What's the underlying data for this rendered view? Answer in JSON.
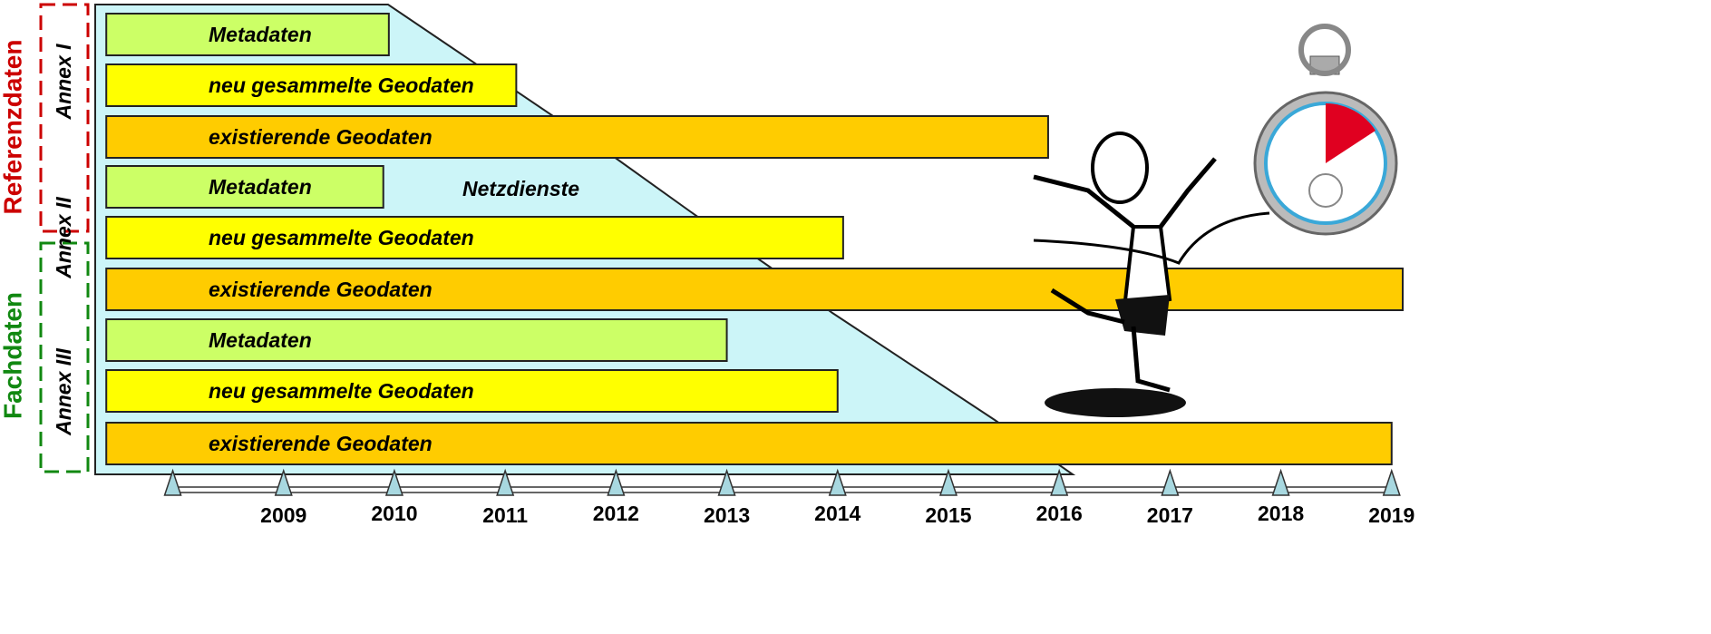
{
  "chart_data": {
    "type": "gantt",
    "side_labels": [
      {
        "label": "Referenzdaten",
        "color": "#cc0000"
      },
      {
        "label": "Fachdaten",
        "color": "#118811"
      }
    ],
    "groups": [
      "Annex I",
      "Annex II",
      "Annex III"
    ],
    "annotation": "Netzdienste",
    "bars": [
      {
        "label": "Metadaten",
        "start": 2007.4,
        "end": 2009.95,
        "color": "#ccff66"
      },
      {
        "label": "neu gesammelte Geodaten",
        "start": 2007.4,
        "end": 2011.1,
        "color": "#ffff00"
      },
      {
        "label": "existierende Geodaten",
        "start": 2007.4,
        "end": 2015.9,
        "color": "#ffcc00"
      },
      {
        "label": "Metadaten",
        "start": 2007.4,
        "end": 2009.9,
        "color": "#ccff66"
      },
      {
        "label": "neu gesammelte Geodaten",
        "start": 2007.4,
        "end": 2014.05,
        "color": "#ffff00"
      },
      {
        "label": "existierende Geodaten",
        "start": 2007.4,
        "end": 2019.1,
        "color": "#ffcc00"
      },
      {
        "label": "Metadaten",
        "start": 2007.4,
        "end": 2013,
        "color": "#ccff66"
      },
      {
        "label": "neu gesammelte Geodaten",
        "start": 2007.4,
        "end": 2014,
        "color": "#ffff00"
      },
      {
        "label": "existierende Geodaten",
        "start": 2007.4,
        "end": 2019,
        "color": "#ffcc00"
      }
    ],
    "xlim": [
      2007.3,
      2019.1
    ],
    "xticks": [
      {
        "value": 2008,
        "label": null
      },
      2009,
      2010,
      2011,
      2012,
      2013,
      2014,
      2015,
      2016,
      2017,
      2018,
      2019
    ]
  }
}
